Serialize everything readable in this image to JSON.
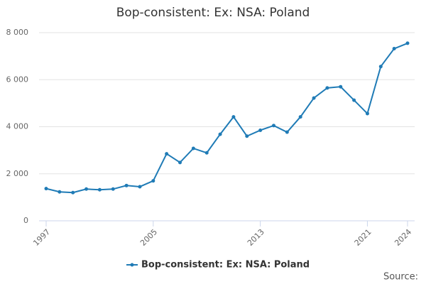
{
  "chart_data": {
    "type": "line",
    "title": "Bop-consistent: Ex: NSA: Poland",
    "x": [
      1997,
      1998,
      1999,
      2000,
      2001,
      2002,
      2003,
      2004,
      2005,
      2006,
      2007,
      2008,
      2009,
      2010,
      2011,
      2012,
      2013,
      2014,
      2015,
      2016,
      2017,
      2018,
      2019,
      2020,
      2021,
      2022,
      2023,
      2024
    ],
    "series": [
      {
        "name": "Bop-consistent: Ex: NSA: Poland",
        "color": "#1f7bb6",
        "values": [
          1370,
          1230,
          1200,
          1350,
          1320,
          1350,
          1500,
          1450,
          1700,
          2850,
          2480,
          3080,
          2890,
          3680,
          4420,
          3600,
          3850,
          4050,
          3770,
          4420,
          5220,
          5650,
          5700,
          5130,
          4560,
          6560,
          7320,
          7550
        ]
      }
    ],
    "xlim": [
      1997,
      2024
    ],
    "xticks": [
      1997,
      2005,
      2013,
      2021,
      2024
    ],
    "ylim": [
      0,
      8000
    ],
    "yticks": [
      0,
      {
        "value": 2000,
        "label": "2 000"
      },
      {
        "value": 4000,
        "label": "4 000"
      },
      {
        "value": 6000,
        "label": "6 000"
      },
      {
        "value": 8000,
        "label": "8 000"
      }
    ],
    "grid": true,
    "legend": "bottom",
    "source": "Source:"
  }
}
